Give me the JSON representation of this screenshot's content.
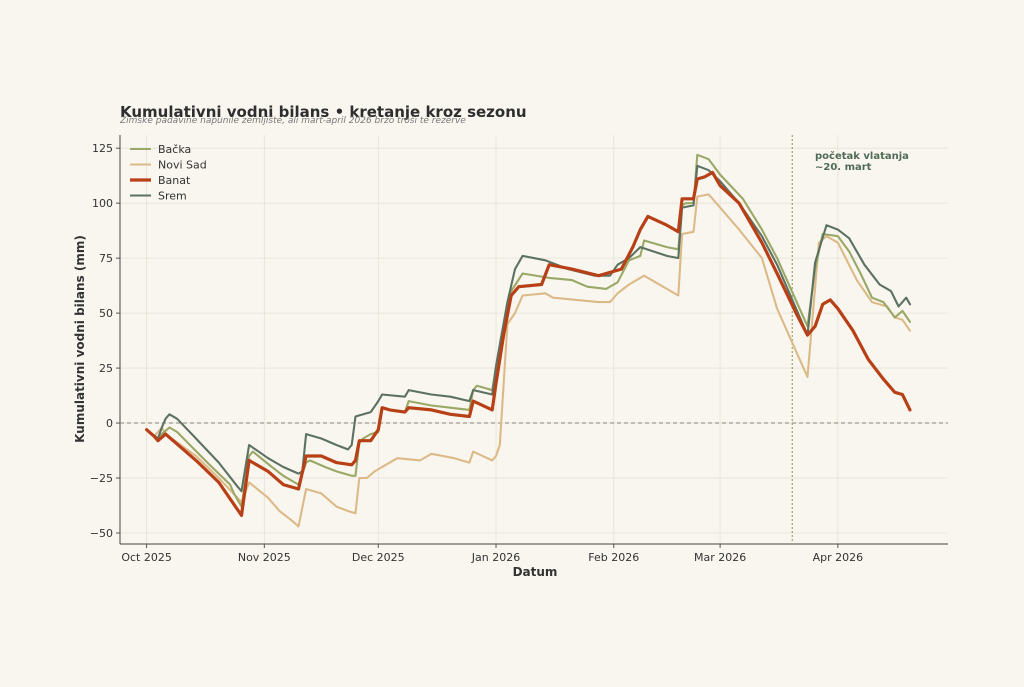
{
  "chart_data": {
    "type": "line",
    "title": "Kumulativni vodni bilans  •  kretanje kroz sezonu",
    "subtitle": "Zimske padavine napunile zemljište, ali mart-april 2026 brzo troši te rezerve",
    "xlabel": "Datum",
    "ylabel": "Kumulativni vodni bilans (mm)",
    "x_ticks": [
      "2025-10-01",
      "2025-11-01",
      "2025-12-01",
      "2026-01-01",
      "2026-02-01",
      "2026-03-01",
      "2026-04-01"
    ],
    "x_tick_labels": [
      "Oct 2025",
      "Nov 2025",
      "Dec 2025",
      "Jan 2026",
      "Feb 2026",
      "Mar 2026",
      "Apr 2026"
    ],
    "y_ticks": [
      -50,
      -25,
      0,
      25,
      50,
      75,
      100,
      125
    ],
    "ylim": [
      -55,
      131
    ],
    "xlim": [
      "2025-09-24",
      "2026-04-30"
    ],
    "grid": true,
    "legend_position": "top-left",
    "zero_line": true,
    "annotation": {
      "date": "2026-03-20",
      "text_line1": "početak vlatanja",
      "text_line2": "~20. mart"
    },
    "series": [
      {
        "name": "Bačka",
        "color": "#9aa866",
        "points": [
          [
            "2025-10-01",
            -3
          ],
          [
            "2025-10-04",
            -8
          ],
          [
            "2025-10-05",
            -5
          ],
          [
            "2025-10-07",
            -2
          ],
          [
            "2025-10-09",
            -4
          ],
          [
            "2025-10-17",
            -18
          ],
          [
            "2025-10-23",
            -28
          ],
          [
            "2025-10-24",
            -32
          ],
          [
            "2025-10-25",
            -35
          ],
          [
            "2025-10-26",
            -38
          ],
          [
            "2025-10-28",
            -15
          ],
          [
            "2025-10-29",
            -13
          ],
          [
            "2025-11-03",
            -20
          ],
          [
            "2025-11-06",
            -24
          ],
          [
            "2025-11-10",
            -28
          ],
          [
            "2025-11-12",
            -18
          ],
          [
            "2025-11-13",
            -17
          ],
          [
            "2025-11-17",
            -20
          ],
          [
            "2025-11-20",
            -22
          ],
          [
            "2025-11-24",
            -24
          ],
          [
            "2025-11-25",
            -24
          ],
          [
            "2025-11-26",
            -9
          ],
          [
            "2025-11-27",
            -7
          ],
          [
            "2025-11-29",
            -5
          ],
          [
            "2025-12-01",
            -4
          ],
          [
            "2025-12-02",
            7
          ],
          [
            "2025-12-04",
            6
          ],
          [
            "2025-12-08",
            5
          ],
          [
            "2025-12-09",
            10
          ],
          [
            "2025-12-15",
            8
          ],
          [
            "2025-12-20",
            7
          ],
          [
            "2025-12-25",
            6
          ],
          [
            "2025-12-26",
            15
          ],
          [
            "2025-12-27",
            17
          ],
          [
            "2025-12-31",
            15
          ],
          [
            "2026-01-01",
            25
          ],
          [
            "2026-01-04",
            50
          ],
          [
            "2026-01-05",
            60
          ],
          [
            "2026-01-08",
            68
          ],
          [
            "2026-01-15",
            66
          ],
          [
            "2026-01-21",
            65
          ],
          [
            "2026-01-25",
            62
          ],
          [
            "2026-01-30",
            61
          ],
          [
            "2026-02-02",
            64
          ],
          [
            "2026-02-05",
            74
          ],
          [
            "2026-02-08",
            76
          ],
          [
            "2026-02-09",
            83
          ],
          [
            "2026-02-15",
            80
          ],
          [
            "2026-02-18",
            79
          ],
          [
            "2026-02-19",
            99
          ],
          [
            "2026-02-20",
            100
          ],
          [
            "2026-02-22",
            100
          ],
          [
            "2026-02-23",
            122
          ],
          [
            "2026-02-26",
            120
          ],
          [
            "2026-03-01",
            113
          ],
          [
            "2026-03-07",
            102
          ],
          [
            "2026-03-12",
            88
          ],
          [
            "2026-03-16",
            75
          ],
          [
            "2026-03-24",
            44
          ],
          [
            "2026-03-26",
            70
          ],
          [
            "2026-03-28",
            86
          ],
          [
            "2026-04-01",
            85
          ],
          [
            "2026-04-04",
            78
          ],
          [
            "2026-04-07",
            68
          ],
          [
            "2026-04-10",
            57
          ],
          [
            "2026-04-13",
            55
          ],
          [
            "2026-04-16",
            48
          ],
          [
            "2026-04-18",
            51
          ],
          [
            "2026-04-20",
            46
          ]
        ]
      },
      {
        "name": "Novi Sad",
        "color": "#dcba88",
        "points": [
          [
            "2025-10-01",
            -3
          ],
          [
            "2025-10-03",
            -6
          ],
          [
            "2025-10-04",
            -4
          ],
          [
            "2025-10-05",
            -2
          ],
          [
            "2025-10-06",
            -5
          ],
          [
            "2025-10-14",
            -15
          ],
          [
            "2025-10-20",
            -25
          ],
          [
            "2025-10-26",
            -36
          ],
          [
            "2025-10-28",
            -27
          ],
          [
            "2025-11-02",
            -34
          ],
          [
            "2025-11-05",
            -40
          ],
          [
            "2025-11-08",
            -44
          ],
          [
            "2025-11-10",
            -47
          ],
          [
            "2025-11-12",
            -30
          ],
          [
            "2025-11-16",
            -32
          ],
          [
            "2025-11-20",
            -38
          ],
          [
            "2025-11-23",
            -40
          ],
          [
            "2025-11-25",
            -41
          ],
          [
            "2025-11-26",
            -25
          ],
          [
            "2025-11-28",
            -25
          ],
          [
            "2025-11-30",
            -22
          ],
          [
            "2025-12-06",
            -16
          ],
          [
            "2025-12-12",
            -17
          ],
          [
            "2025-12-15",
            -14
          ],
          [
            "2025-12-21",
            -16
          ],
          [
            "2025-12-25",
            -18
          ],
          [
            "2025-12-26",
            -13
          ],
          [
            "2025-12-31",
            -17
          ],
          [
            "2026-01-01",
            -15
          ],
          [
            "2026-01-02",
            -10
          ],
          [
            "2026-01-04",
            45
          ],
          [
            "2026-01-06",
            50
          ],
          [
            "2026-01-08",
            58
          ],
          [
            "2026-01-14",
            59
          ],
          [
            "2026-01-16",
            57
          ],
          [
            "2026-01-28",
            55
          ],
          [
            "2026-01-31",
            55
          ],
          [
            "2026-02-02",
            59
          ],
          [
            "2026-02-05",
            63
          ],
          [
            "2026-02-09",
            67
          ],
          [
            "2026-02-16",
            60
          ],
          [
            "2026-02-18",
            58
          ],
          [
            "2026-02-19",
            86
          ],
          [
            "2026-02-22",
            87
          ],
          [
            "2026-02-23",
            103
          ],
          [
            "2026-02-26",
            104
          ],
          [
            "2026-03-01",
            98
          ],
          [
            "2026-03-06",
            88
          ],
          [
            "2026-03-12",
            75
          ],
          [
            "2026-03-16",
            52
          ],
          [
            "2026-03-24",
            21
          ],
          [
            "2026-03-27",
            82
          ],
          [
            "2026-03-29",
            85
          ],
          [
            "2026-04-01",
            82
          ],
          [
            "2026-04-06",
            65
          ],
          [
            "2026-04-10",
            55
          ],
          [
            "2026-04-14",
            53
          ],
          [
            "2026-04-16",
            48
          ],
          [
            "2026-04-18",
            47
          ],
          [
            "2026-04-20",
            42
          ]
        ]
      },
      {
        "name": "Banat",
        "color": "#b84016",
        "points": [
          [
            "2025-10-01",
            -3
          ],
          [
            "2025-10-03",
            -6
          ],
          [
            "2025-10-04",
            -8
          ],
          [
            "2025-10-06",
            -5
          ],
          [
            "2025-10-08",
            -8
          ],
          [
            "2025-10-14",
            -17
          ],
          [
            "2025-10-20",
            -27
          ],
          [
            "2025-10-26",
            -42
          ],
          [
            "2025-10-28",
            -17
          ],
          [
            "2025-11-02",
            -22
          ],
          [
            "2025-11-06",
            -28
          ],
          [
            "2025-11-10",
            -30
          ],
          [
            "2025-11-12",
            -15
          ],
          [
            "2025-11-16",
            -15
          ],
          [
            "2025-11-20",
            -18
          ],
          [
            "2025-11-24",
            -19
          ],
          [
            "2025-11-25",
            -17
          ],
          [
            "2025-11-26",
            -8
          ],
          [
            "2025-11-29",
            -8
          ],
          [
            "2025-12-01",
            -3
          ],
          [
            "2025-12-02",
            7
          ],
          [
            "2025-12-04",
            6
          ],
          [
            "2025-12-08",
            5
          ],
          [
            "2025-12-09",
            7
          ],
          [
            "2025-12-15",
            6
          ],
          [
            "2025-12-20",
            4
          ],
          [
            "2025-12-25",
            3
          ],
          [
            "2025-12-26",
            10
          ],
          [
            "2025-12-31",
            6
          ],
          [
            "2026-01-01",
            18
          ],
          [
            "2026-01-03",
            40
          ],
          [
            "2026-01-05",
            58
          ],
          [
            "2026-01-07",
            62
          ],
          [
            "2026-01-13",
            63
          ],
          [
            "2026-01-15",
            72
          ],
          [
            "2026-01-21",
            70
          ],
          [
            "2026-01-28",
            67
          ],
          [
            "2026-02-03",
            70
          ],
          [
            "2026-02-06",
            80
          ],
          [
            "2026-02-08",
            88
          ],
          [
            "2026-02-10",
            94
          ],
          [
            "2026-02-15",
            90
          ],
          [
            "2026-02-18",
            87
          ],
          [
            "2026-02-19",
            102
          ],
          [
            "2026-02-22",
            102
          ],
          [
            "2026-02-23",
            111
          ],
          [
            "2026-02-25",
            112
          ],
          [
            "2026-02-27",
            114
          ],
          [
            "2026-03-01",
            108
          ],
          [
            "2026-03-06",
            100
          ],
          [
            "2026-03-12",
            82
          ],
          [
            "2026-03-16",
            68
          ],
          [
            "2026-03-21",
            50
          ],
          [
            "2026-03-24",
            40
          ],
          [
            "2026-03-26",
            44
          ],
          [
            "2026-03-28",
            54
          ],
          [
            "2026-03-30",
            56
          ],
          [
            "2026-04-01",
            52
          ],
          [
            "2026-04-05",
            42
          ],
          [
            "2026-04-09",
            29
          ],
          [
            "2026-04-13",
            20
          ],
          [
            "2026-04-16",
            14
          ],
          [
            "2026-04-18",
            13
          ],
          [
            "2026-04-20",
            6
          ]
        ]
      },
      {
        "name": "Srem",
        "color": "#5b7263",
        "points": [
          [
            "2025-10-01",
            -3
          ],
          [
            "2025-10-04",
            -7
          ],
          [
            "2025-10-05",
            -2
          ],
          [
            "2025-10-06",
            2
          ],
          [
            "2025-10-07",
            4
          ],
          [
            "2025-10-09",
            2
          ],
          [
            "2025-10-14",
            -7
          ],
          [
            "2025-10-20",
            -18
          ],
          [
            "2025-10-25",
            -29
          ],
          [
            "2025-10-26",
            -31
          ],
          [
            "2025-10-28",
            -10
          ],
          [
            "2025-11-02",
            -16
          ],
          [
            "2025-11-06",
            -20
          ],
          [
            "2025-11-10",
            -23
          ],
          [
            "2025-11-11",
            -22
          ],
          [
            "2025-11-12",
            -5
          ],
          [
            "2025-11-16",
            -7
          ],
          [
            "2025-11-20",
            -10
          ],
          [
            "2025-11-23",
            -12
          ],
          [
            "2025-11-24",
            -10
          ],
          [
            "2025-11-25",
            3
          ],
          [
            "2025-11-29",
            5
          ],
          [
            "2025-12-01",
            10
          ],
          [
            "2025-12-02",
            13
          ],
          [
            "2025-12-08",
            12
          ],
          [
            "2025-12-09",
            15
          ],
          [
            "2025-12-15",
            13
          ],
          [
            "2025-12-20",
            12
          ],
          [
            "2025-12-25",
            10
          ],
          [
            "2025-12-26",
            15
          ],
          [
            "2025-12-31",
            13
          ],
          [
            "2026-01-01",
            26
          ],
          [
            "2026-01-04",
            55
          ],
          [
            "2026-01-06",
            70
          ],
          [
            "2026-01-08",
            76
          ],
          [
            "2026-01-14",
            74
          ],
          [
            "2026-01-20",
            70
          ],
          [
            "2026-01-27",
            67
          ],
          [
            "2026-01-31",
            67
          ],
          [
            "2026-02-02",
            72
          ],
          [
            "2026-02-05",
            75
          ],
          [
            "2026-02-08",
            80
          ],
          [
            "2026-02-15",
            76
          ],
          [
            "2026-02-18",
            75
          ],
          [
            "2026-02-19",
            98
          ],
          [
            "2026-02-22",
            99
          ],
          [
            "2026-02-23",
            117
          ],
          [
            "2026-02-26",
            115
          ],
          [
            "2026-03-01",
            110
          ],
          [
            "2026-03-06",
            100
          ],
          [
            "2026-03-12",
            85
          ],
          [
            "2026-03-16",
            72
          ],
          [
            "2026-03-24",
            40
          ],
          [
            "2026-03-26",
            73
          ],
          [
            "2026-03-29",
            90
          ],
          [
            "2026-04-01",
            88
          ],
          [
            "2026-04-04",
            84
          ],
          [
            "2026-04-08",
            72
          ],
          [
            "2026-04-12",
            63
          ],
          [
            "2026-04-15",
            60
          ],
          [
            "2026-04-17",
            53
          ],
          [
            "2026-04-19",
            57
          ],
          [
            "2026-04-20",
            54
          ]
        ]
      }
    ]
  }
}
